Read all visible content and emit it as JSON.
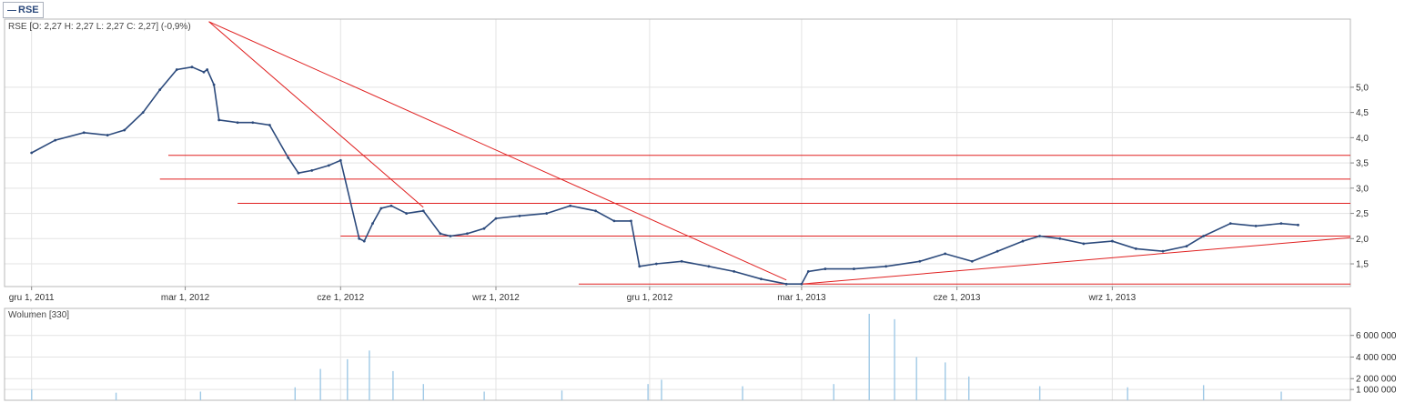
{
  "legend": {
    "label": "RSE",
    "color": "#2c4a7c"
  },
  "price_panel": {
    "info": "RSE [O: 2,27  H: 2,27  L: 2,27  C: 2,27] (-0,9%)",
    "y_ticks": [
      "1,5",
      "2,0",
      "2,5",
      "3,0",
      "3,5",
      "4,0",
      "4,5",
      "5,0"
    ],
    "y_values": [
      1.5,
      2.0,
      2.5,
      3.0,
      3.5,
      4.0,
      4.5,
      5.0
    ],
    "ylim": [
      1.05,
      6.35
    ]
  },
  "volume_panel": {
    "info": "Wolumen [330]",
    "y_ticks": [
      "1 000 000",
      "2 000 000",
      "4 000 000",
      "6 000 000"
    ],
    "y_values": [
      1000000,
      2000000,
      4000000,
      6000000
    ],
    "ylim": [
      0,
      8500000
    ]
  },
  "x_axis": {
    "labels": [
      "gru 1, 2011",
      "mar 1, 2012",
      "cze 1, 2012",
      "wrz 1, 2012",
      "gru 1, 2012",
      "mar 1, 2013",
      "cze 1, 2013",
      "wrz 1, 2013"
    ],
    "dates": [
      "2011-12-01",
      "2012-03-01",
      "2012-06-01",
      "2012-09-01",
      "2012-12-01",
      "2013-03-01",
      "2013-06-01",
      "2013-09-01"
    ],
    "range": [
      "2011-11-15",
      "2014-01-20"
    ]
  },
  "colors": {
    "price": "#2c4a7c",
    "volume": "#9fc9e6",
    "trend": "#e02020",
    "grid": "#e3e3e3"
  },
  "chart_data": {
    "type": "line",
    "title": "RSE",
    "series": [
      {
        "name": "RSE",
        "x": [
          "2011-12-01",
          "2011-12-15",
          "2012-01-01",
          "2012-01-15",
          "2012-01-25",
          "2012-02-05",
          "2012-02-15",
          "2012-02-25",
          "2012-03-05",
          "2012-03-12",
          "2012-03-14",
          "2012-03-18",
          "2012-03-21",
          "2012-04-01",
          "2012-04-10",
          "2012-04-20",
          "2012-05-01",
          "2012-05-07",
          "2012-05-15",
          "2012-05-25",
          "2012-06-01",
          "2012-06-12",
          "2012-06-15",
          "2012-06-20",
          "2012-06-25",
          "2012-07-01",
          "2012-07-10",
          "2012-07-20",
          "2012-07-30",
          "2012-08-05",
          "2012-08-15",
          "2012-08-25",
          "2012-09-01",
          "2012-09-15",
          "2012-10-01",
          "2012-10-15",
          "2012-10-30",
          "2012-11-10",
          "2012-11-20",
          "2012-11-25",
          "2012-12-05",
          "2012-12-20",
          "2013-01-05",
          "2013-01-20",
          "2013-02-05",
          "2013-02-20",
          "2013-03-01",
          "2013-03-05",
          "2013-03-15",
          "2013-04-01",
          "2013-04-20",
          "2013-05-10",
          "2013-05-25",
          "2013-06-10",
          "2013-06-25",
          "2013-07-10",
          "2013-07-20",
          "2013-08-01",
          "2013-08-15",
          "2013-09-01",
          "2013-09-15",
          "2013-10-01",
          "2013-10-15",
          "2013-10-25",
          "2013-11-10",
          "2013-11-25",
          "2013-12-10",
          "2013-12-20"
        ],
        "values": [
          3.7,
          3.95,
          4.1,
          4.05,
          4.15,
          4.5,
          4.95,
          5.35,
          5.4,
          5.3,
          5.35,
          5.05,
          4.35,
          4.3,
          4.3,
          4.25,
          3.6,
          3.3,
          3.35,
          3.45,
          3.55,
          2.0,
          1.95,
          2.3,
          2.6,
          2.65,
          2.5,
          2.55,
          2.1,
          2.05,
          2.1,
          2.2,
          2.4,
          2.45,
          2.5,
          2.65,
          2.55,
          2.35,
          2.35,
          1.45,
          1.5,
          1.55,
          1.45,
          1.35,
          1.2,
          1.1,
          1.1,
          1.35,
          1.4,
          1.4,
          1.45,
          1.55,
          1.7,
          1.55,
          1.75,
          1.95,
          2.05,
          2.0,
          1.9,
          1.95,
          1.8,
          1.75,
          1.85,
          2.05,
          2.3,
          2.25,
          2.3,
          2.27
        ]
      },
      {
        "name": "Wolumen",
        "x": [
          "2011-12-01",
          "2012-01-20",
          "2012-03-10",
          "2012-05-05",
          "2012-05-20",
          "2012-06-05",
          "2012-06-18",
          "2012-07-02",
          "2012-07-20",
          "2012-08-25",
          "2012-10-10",
          "2012-11-30",
          "2012-12-08",
          "2013-01-25",
          "2013-03-20",
          "2013-04-10",
          "2013-04-25",
          "2013-05-08",
          "2013-05-25",
          "2013-06-08",
          "2013-07-20",
          "2013-09-10",
          "2013-10-25",
          "2013-12-10"
        ],
        "values": [
          1000000,
          700000,
          800000,
          1200000,
          2900000,
          3800000,
          4600000,
          2700000,
          1500000,
          800000,
          900000,
          1500000,
          1900000,
          1300000,
          1500000,
          8000000,
          7500000,
          4000000,
          3500000,
          2200000,
          1300000,
          1200000,
          1400000,
          800000
        ]
      }
    ],
    "trendlines": [
      {
        "from": [
          "2012-03-15",
          6.3
        ],
        "to": [
          "2012-07-20",
          2.62
        ]
      },
      {
        "from": [
          "2012-03-15",
          6.3
        ],
        "to": [
          "2013-02-20",
          1.18
        ]
      },
      {
        "from": [
          "2013-03-01",
          1.1
        ],
        "to": [
          "2014-01-20",
          2.02
        ]
      },
      {
        "from": [
          "2012-06-01",
          2.05
        ],
        "to": [
          "2014-01-20",
          2.05
        ]
      },
      {
        "from": [
          "2012-04-01",
          2.7
        ],
        "to": [
          "2014-01-20",
          2.7
        ]
      },
      {
        "from": [
          "2012-02-15",
          3.18
        ],
        "to": [
          "2014-01-20",
          3.18
        ]
      },
      {
        "from": [
          "2012-02-20",
          3.65
        ],
        "to": [
          "2014-01-20",
          3.65
        ]
      },
      {
        "from": [
          "2012-10-20",
          1.1
        ],
        "to": [
          "2014-01-20",
          1.1
        ]
      }
    ]
  }
}
